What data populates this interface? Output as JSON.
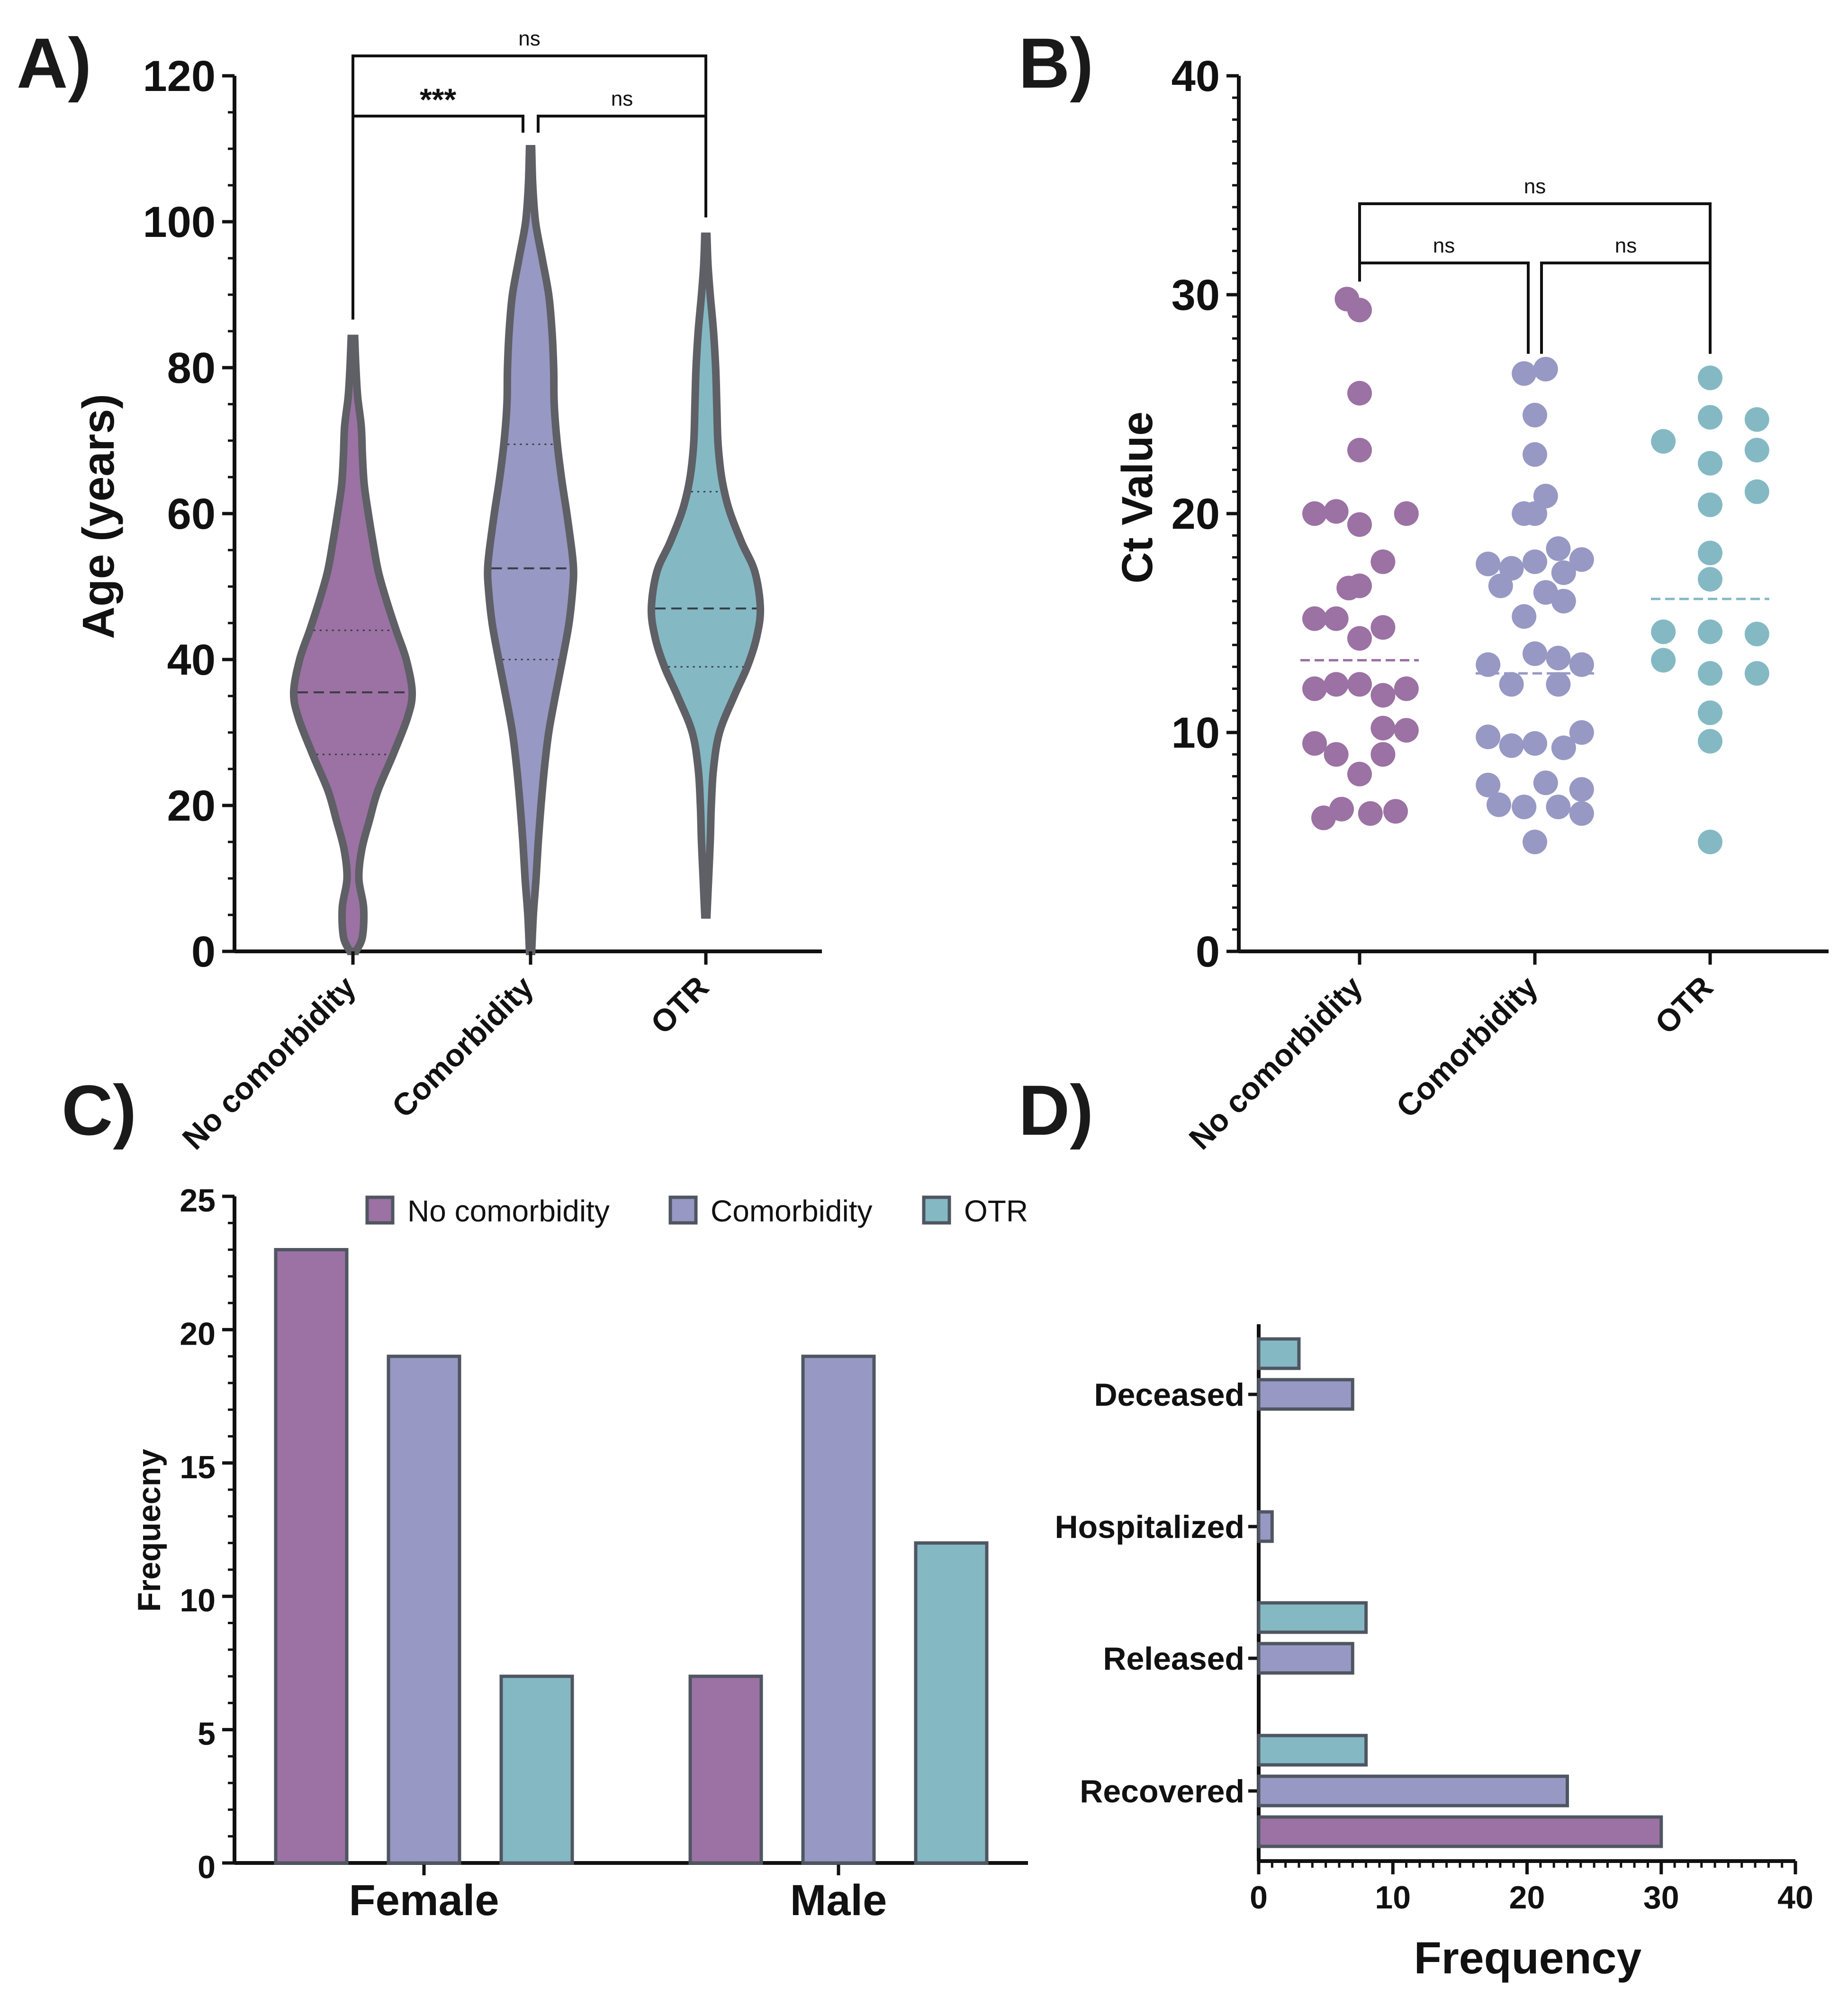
{
  "colors": {
    "no_comorbidity": "#9b72a3",
    "comorbidity": "#9898c4",
    "otr": "#84b9c4",
    "axis": "#111111"
  },
  "panels": {
    "A": "A)",
    "B": "B)",
    "C": "C)",
    "D": "D)"
  },
  "chart_data": [
    {
      "id": "A",
      "type": "violin",
      "title": "",
      "xlabel": "",
      "ylabel": "Age (years)",
      "ylim": [
        0,
        120
      ],
      "yticks": [
        0,
        20,
        40,
        60,
        80,
        100,
        120
      ],
      "categories": [
        "No comorbidity",
        "Comorbidity",
        "OTR"
      ],
      "series": [
        {
          "name": "No comorbidity",
          "min": 0,
          "max": 84,
          "q1": 27,
          "median": 35.5,
          "q3": 44,
          "density_profile": [
            [
              0,
              0.05
            ],
            [
              2,
              0.16
            ],
            [
              6,
              0.18
            ],
            [
              10,
              0.1
            ],
            [
              14,
              0.15
            ],
            [
              18,
              0.28
            ],
            [
              22,
              0.42
            ],
            [
              27,
              0.68
            ],
            [
              32,
              0.92
            ],
            [
              35.5,
              1.0
            ],
            [
              40,
              0.9
            ],
            [
              44,
              0.73
            ],
            [
              48,
              0.57
            ],
            [
              52,
              0.43
            ],
            [
              56,
              0.34
            ],
            [
              60,
              0.26
            ],
            [
              64,
              0.19
            ],
            [
              68,
              0.16
            ],
            [
              72,
              0.14
            ],
            [
              76,
              0.08
            ],
            [
              80,
              0.05
            ],
            [
              84,
              0.03
            ]
          ]
        },
        {
          "name": "Comorbidity",
          "min": 0,
          "max": 110,
          "q1": 40,
          "median": 52.5,
          "q3": 69.5,
          "density_profile": [
            [
              0,
              0.02
            ],
            [
              5,
              0.05
            ],
            [
              10,
              0.1
            ],
            [
              15,
              0.14
            ],
            [
              20,
              0.19
            ],
            [
              25,
              0.25
            ],
            [
              30,
              0.33
            ],
            [
              35,
              0.45
            ],
            [
              40,
              0.58
            ],
            [
              45,
              0.7
            ],
            [
              50,
              0.77
            ],
            [
              52.5,
              0.78
            ],
            [
              55,
              0.75
            ],
            [
              60,
              0.66
            ],
            [
              65,
              0.56
            ],
            [
              70,
              0.48
            ],
            [
              75,
              0.43
            ],
            [
              80,
              0.42
            ],
            [
              85,
              0.39
            ],
            [
              90,
              0.33
            ],
            [
              95,
              0.21
            ],
            [
              100,
              0.09
            ],
            [
              105,
              0.04
            ],
            [
              110,
              0.02
            ]
          ]
        },
        {
          "name": "OTR",
          "min": 5,
          "max": 98,
          "q1": 39,
          "median": 47,
          "q3": 63,
          "density_profile": [
            [
              5,
              0.02
            ],
            [
              10,
              0.05
            ],
            [
              15,
              0.08
            ],
            [
              20,
              0.1
            ],
            [
              25,
              0.14
            ],
            [
              30,
              0.25
            ],
            [
              35,
              0.52
            ],
            [
              39,
              0.76
            ],
            [
              43,
              0.93
            ],
            [
              47,
              1.0
            ],
            [
              52,
              0.9
            ],
            [
              56,
              0.66
            ],
            [
              60,
              0.45
            ],
            [
              63,
              0.34
            ],
            [
              66,
              0.27
            ],
            [
              70,
              0.22
            ],
            [
              75,
              0.2
            ],
            [
              80,
              0.18
            ],
            [
              85,
              0.14
            ],
            [
              90,
              0.08
            ],
            [
              94,
              0.04
            ],
            [
              98,
              0.02
            ]
          ]
        }
      ],
      "significance": [
        {
          "from": "No comorbidity",
          "to": "OTR",
          "label": "ns"
        },
        {
          "from": "No comorbidity",
          "to": "Comorbidity",
          "label": "***"
        },
        {
          "from": "Comorbidity",
          "to": "OTR",
          "label": "ns"
        }
      ]
    },
    {
      "id": "B",
      "type": "scatter",
      "title": "",
      "xlabel": "",
      "ylabel": "Ct Value",
      "ylim": [
        0,
        40
      ],
      "yticks": [
        0,
        10,
        20,
        30,
        40
      ],
      "categories": [
        "No comorbidity",
        "Comorbidity",
        "OTR"
      ],
      "series": [
        {
          "name": "No comorbidity",
          "mean": 13.3,
          "points": [
            [
              -0.07,
              29.8
            ],
            [
              0.0,
              29.3
            ],
            [
              0.0,
              25.5
            ],
            [
              0.0,
              22.9
            ],
            [
              -0.25,
              20.0
            ],
            [
              -0.13,
              20.1
            ],
            [
              0.0,
              19.5
            ],
            [
              0.26,
              20.0
            ],
            [
              0.13,
              17.8
            ],
            [
              -0.06,
              16.6
            ],
            [
              0.0,
              16.7
            ],
            [
              -0.25,
              15.2
            ],
            [
              -0.13,
              15.2
            ],
            [
              0.0,
              14.3
            ],
            [
              0.13,
              14.8
            ],
            [
              0.13,
              11.7
            ],
            [
              -0.25,
              12.0
            ],
            [
              -0.13,
              12.2
            ],
            [
              0.0,
              12.2
            ],
            [
              0.26,
              12.0
            ],
            [
              0.13,
              10.2
            ],
            [
              0.26,
              10.1
            ],
            [
              -0.25,
              9.5
            ],
            [
              -0.13,
              9.0
            ],
            [
              0.13,
              9.0
            ],
            [
              0.0,
              8.1
            ],
            [
              -0.2,
              6.1
            ],
            [
              -0.1,
              6.5
            ],
            [
              0.06,
              6.3
            ],
            [
              0.2,
              6.4
            ]
          ]
        },
        {
          "name": "Comorbidity",
          "mean": 12.7,
          "points": [
            [
              -0.06,
              26.4
            ],
            [
              0.06,
              26.6
            ],
            [
              0.0,
              24.5
            ],
            [
              0.0,
              22.7
            ],
            [
              0.06,
              20.8
            ],
            [
              -0.06,
              20.0
            ],
            [
              0.0,
              20.0
            ],
            [
              -0.26,
              17.7
            ],
            [
              -0.13,
              17.5
            ],
            [
              0.0,
              17.8
            ],
            [
              0.13,
              18.4
            ],
            [
              0.26,
              17.9
            ],
            [
              -0.19,
              16.7
            ],
            [
              0.06,
              16.4
            ],
            [
              0.16,
              17.3
            ],
            [
              -0.06,
              15.3
            ],
            [
              0.16,
              16.0
            ],
            [
              -0.26,
              13.1
            ],
            [
              0.0,
              13.6
            ],
            [
              0.13,
              13.4
            ],
            [
              0.26,
              13.1
            ],
            [
              -0.13,
              12.2
            ],
            [
              0.13,
              12.2
            ],
            [
              -0.26,
              9.8
            ],
            [
              -0.13,
              9.4
            ],
            [
              0.0,
              9.5
            ],
            [
              0.16,
              9.3
            ],
            [
              0.26,
              10.0
            ],
            [
              -0.26,
              7.6
            ],
            [
              0.06,
              7.7
            ],
            [
              0.26,
              7.4
            ],
            [
              -0.2,
              6.7
            ],
            [
              -0.06,
              6.6
            ],
            [
              0.13,
              6.6
            ],
            [
              0.26,
              6.3
            ],
            [
              0.0,
              5.0
            ]
          ]
        },
        {
          "name": "OTR",
          "mean": 16.1,
          "points": [
            [
              -0.26,
              23.3
            ],
            [
              0.0,
              26.2
            ],
            [
              0.0,
              24.4
            ],
            [
              0.0,
              22.3
            ],
            [
              0.26,
              24.3
            ],
            [
              0.26,
              22.9
            ],
            [
              0.0,
              20.4
            ],
            [
              0.26,
              21.0
            ],
            [
              0.0,
              18.2
            ],
            [
              0.0,
              17.0
            ],
            [
              -0.26,
              14.6
            ],
            [
              0.0,
              14.6
            ],
            [
              0.26,
              14.5
            ],
            [
              -0.26,
              13.3
            ],
            [
              0.0,
              12.7
            ],
            [
              0.26,
              12.7
            ],
            [
              0.0,
              10.9
            ],
            [
              0.0,
              9.6
            ],
            [
              0.0,
              5.0
            ]
          ]
        }
      ],
      "significance": [
        {
          "from": "No comorbidity",
          "to": "OTR",
          "label": "ns"
        },
        {
          "from": "No comorbidity",
          "to": "Comorbidity",
          "label": "ns"
        },
        {
          "from": "Comorbidity",
          "to": "OTR",
          "label": "ns"
        }
      ]
    },
    {
      "id": "C",
      "type": "bar",
      "title": "",
      "xlabel": "",
      "ylabel": "Frequecny",
      "ylim": [
        0,
        25
      ],
      "yticks": [
        0,
        5,
        10,
        15,
        20,
        25
      ],
      "categories": [
        "Female",
        "Male"
      ],
      "legend_position": "top",
      "series": [
        {
          "name": "No comorbidity",
          "values": [
            23,
            7
          ]
        },
        {
          "name": "Comorbidity",
          "values": [
            19,
            19
          ]
        },
        {
          "name": "OTR",
          "values": [
            7,
            12
          ]
        }
      ]
    },
    {
      "id": "D",
      "type": "bar",
      "orientation": "horizontal",
      "title": "",
      "xlabel": "Frequency",
      "ylabel": "",
      "xlim": [
        0,
        40
      ],
      "xticks": [
        0,
        10,
        20,
        30,
        40
      ],
      "categories": [
        "Recovered",
        "Released",
        "Hospitalized",
        "Deceased"
      ],
      "series": [
        {
          "name": "No comorbidity",
          "values": [
            30,
            0,
            0,
            0
          ]
        },
        {
          "name": "Comorbidity",
          "values": [
            23,
            7,
            1,
            7
          ]
        },
        {
          "name": "OTR",
          "values": [
            8,
            8,
            0,
            3
          ]
        }
      ]
    }
  ]
}
